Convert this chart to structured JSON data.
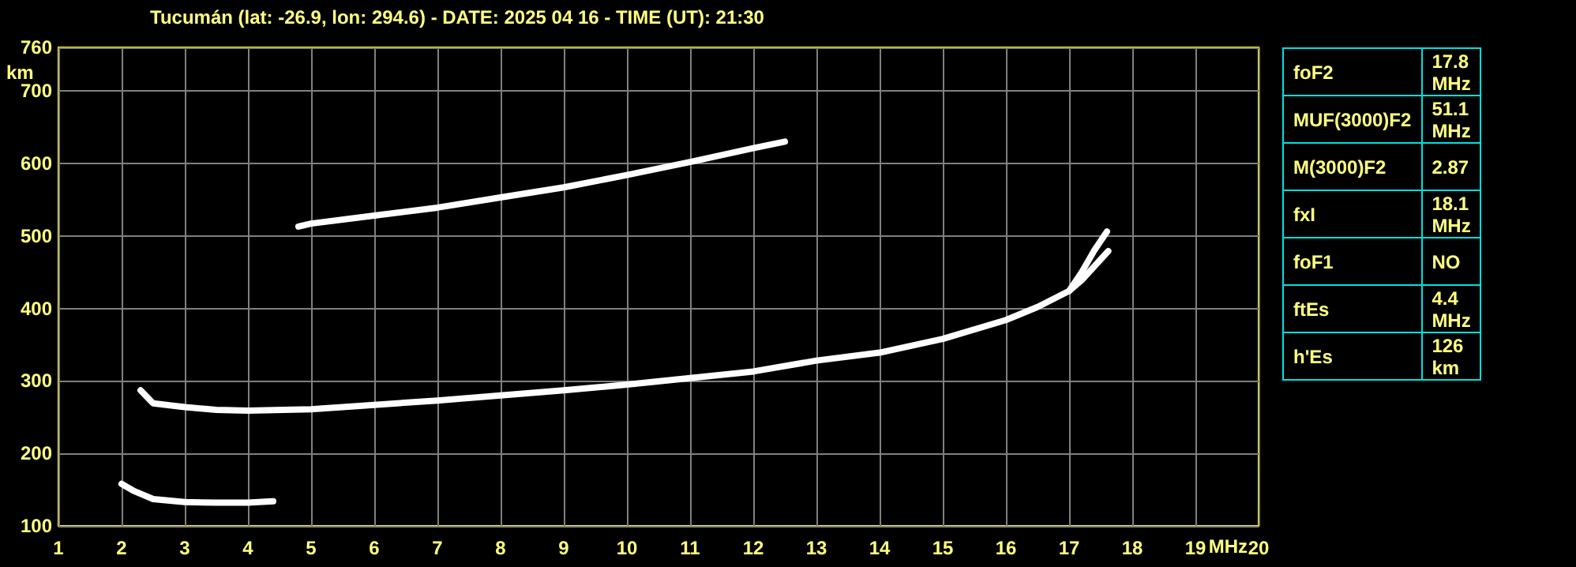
{
  "chart_data": [
    {
      "type": "line",
      "title": "Tucumán (lat: -26.9, lon: 294.6) - DATE: 2025 04 16 - TIME (UT): 21:30",
      "xlabel": "MHz",
      "ylabel": "km",
      "xlim": [
        1,
        20
      ],
      "xticks": [
        1,
        2,
        3,
        4,
        5,
        6,
        7,
        8,
        9,
        10,
        11,
        12,
        13,
        14,
        15,
        16,
        17,
        18,
        19,
        20
      ],
      "ylim": [
        100,
        760
      ],
      "yticks": [
        100,
        200,
        300,
        400,
        500,
        600,
        700,
        760
      ],
      "grid": true,
      "marker": "none",
      "series": [
        {
          "color": "#ffffff",
          "x": [
            2.3,
            2.5,
            3,
            3.5,
            4,
            5,
            6,
            7,
            8,
            9,
            10,
            11,
            12,
            13,
            14,
            15,
            16,
            16.5,
            17,
            17.2,
            17.4,
            17.6
          ],
          "values": [
            287,
            269,
            264,
            260,
            259,
            261,
            267,
            273,
            280,
            287,
            295,
            304,
            313,
            328,
            339,
            358,
            384,
            402,
            424,
            450,
            480,
            506
          ]
        },
        {
          "color": "#ffffff",
          "x": [
            17,
            17.2,
            17.4,
            17.62
          ],
          "values": [
            424,
            439,
            458,
            479
          ]
        },
        {
          "color": "#ffffff",
          "x": [
            2,
            2.2,
            2.5,
            3,
            3.5,
            4,
            4.4
          ],
          "values": [
            158,
            148,
            137,
            133,
            132,
            132,
            134
          ]
        },
        {
          "color": "#ffffff",
          "x": [
            4.8,
            5,
            6,
            7,
            8,
            9,
            10,
            11,
            12,
            12.5
          ],
          "values": [
            513,
            517,
            528,
            539,
            553,
            567,
            584,
            602,
            621,
            630
          ]
        }
      ]
    },
    {
      "type": "other",
      "annotations": [
        "foF2",
        "17.8 MHz",
        "MUF(3000)F2",
        "51.1 MHz",
        "M(3000)F2",
        "2.87",
        "fxI",
        "18.1 MHz",
        "foF1",
        "NO",
        "ftEs",
        "4.4 MHz",
        "h'Es",
        "126 km"
      ]
    }
  ]
}
